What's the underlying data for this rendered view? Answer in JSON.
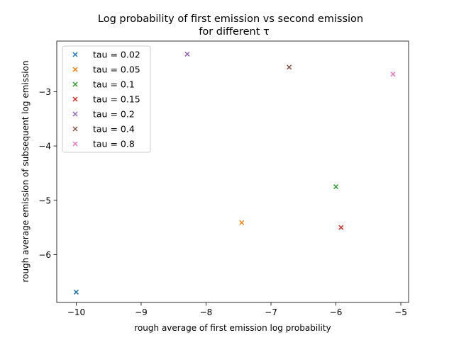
{
  "chart_data": {
    "type": "scatter",
    "title_line1": "Log probability of first emission vs second emission",
    "title_line2": "for different τ",
    "xlabel": "rough average of first emission log probability",
    "ylabel": "rough average emission of subsequent log emission",
    "xlim": [
      -10.3,
      -4.88
    ],
    "ylim": [
      -6.88,
      -2.07
    ],
    "xticks": [
      -10,
      -9,
      -8,
      -7,
      -6,
      -5
    ],
    "yticks": [
      -6,
      -5,
      -4,
      -3
    ],
    "xtick_labels": [
      "−10",
      "−9",
      "−8",
      "−7",
      "−6",
      "−5"
    ],
    "ytick_labels": [
      "−6",
      "−5",
      "−4",
      "−3"
    ],
    "marker": "x",
    "grid": false,
    "legend_position": "upper-left",
    "series": [
      {
        "name": "tau = 0.02",
        "color": "#1f77b4",
        "x": -10.0,
        "y": -6.69
      },
      {
        "name": "tau = 0.05",
        "color": "#ff7f0e",
        "x": -7.45,
        "y": -5.41
      },
      {
        "name": "tau = 0.1",
        "color": "#2ca02c",
        "x": -6.0,
        "y": -4.75
      },
      {
        "name": "tau = 0.15",
        "color": "#d62728",
        "x": -5.92,
        "y": -5.5
      },
      {
        "name": "tau = 0.2",
        "color": "#9467bd",
        "x": -8.29,
        "y": -2.31
      },
      {
        "name": "tau = 0.4",
        "color": "#8c564b",
        "x": -6.72,
        "y": -2.55
      },
      {
        "name": "tau = 0.8",
        "color": "#e377c2",
        "x": -5.12,
        "y": -2.68
      }
    ]
  }
}
